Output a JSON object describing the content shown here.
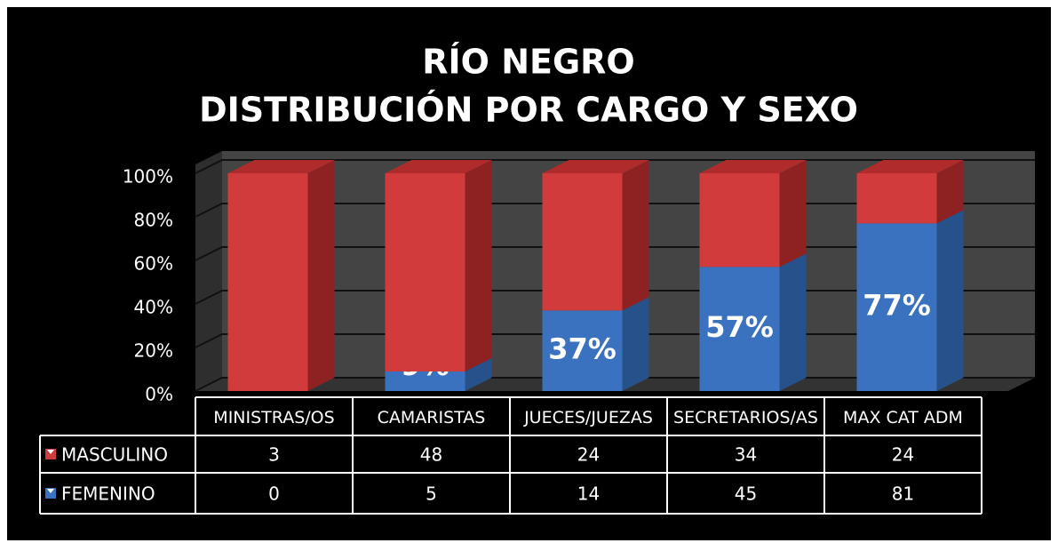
{
  "chart_data": {
    "type": "bar3d_stacked",
    "title": [
      "RÍO NEGRO",
      "DISTRIBUCIÓN POR CARGO Y SEXO"
    ],
    "categories": [
      "MINISTRAS/OS",
      "CAMARISTAS",
      "JUECES/JUEZAS",
      "SECRETARIOS/AS",
      "MAX CAT ADM"
    ],
    "series": [
      {
        "name": "FEMENINO",
        "color": "#3a72bf",
        "side_color": "#27518a",
        "top_color": "#5b8fd6",
        "values": [
          0,
          9,
          37,
          57,
          77
        ],
        "value_labels": [
          "0%",
          "9%",
          "37%",
          "57%",
          "77%"
        ],
        "counts": [
          0,
          5,
          14,
          45,
          81
        ]
      },
      {
        "name": "MASCULINO",
        "color": "#d23b3b",
        "side_color": "#8e2222",
        "top_color": "#b02c2c",
        "values": [
          100,
          91,
          63,
          43,
          23
        ],
        "counts": [
          3,
          48,
          24,
          34,
          24
        ]
      }
    ],
    "table_order": [
      1,
      0
    ],
    "ylim": [
      0,
      100
    ],
    "yticks": [
      {
        "value": 0,
        "label": "0%"
      },
      {
        "value": 20,
        "label": "20%"
      },
      {
        "value": 40,
        "label": "40%"
      },
      {
        "value": 60,
        "label": "60%"
      },
      {
        "value": 80,
        "label": "80%"
      },
      {
        "value": 100,
        "label": "100%"
      }
    ],
    "grid": true
  }
}
